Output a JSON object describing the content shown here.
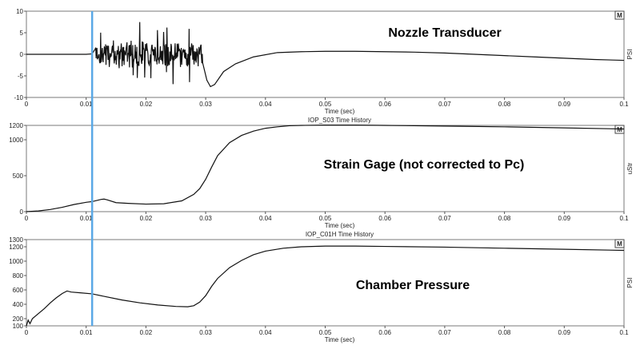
{
  "colors": {
    "trace": "#111111",
    "cursor": "#5aa9e6",
    "frame": "#7a7a7a"
  },
  "cursor": {
    "x": 0.011
  },
  "chart_data": [
    {
      "type": "line",
      "id": "nozzle",
      "title": "",
      "annotation": "Nozzle Transducer",
      "xlabel": "Time (sec)",
      "ylabel": "PSI",
      "corner": "M",
      "xlim": [
        0,
        0.1
      ],
      "ylim": [
        -10,
        10
      ],
      "x_ticks": [
        0,
        0.01,
        0.02,
        0.03,
        0.04,
        0.05,
        0.06,
        0.07,
        0.08,
        0.09,
        0.1
      ],
      "y_ticks": [
        -10,
        -5,
        0,
        5,
        10
      ],
      "noise": {
        "start": 0.0116,
        "end": 0.0295,
        "amplitude": 3.5
      },
      "series": [
        {
          "x": [
            0,
            0.01,
            0.011,
            0.0115,
            0.0118,
            0.0122,
            0.0126,
            0.013,
            0.0134,
            0.0138,
            0.0142,
            0.0148,
            0.0155,
            0.016,
            0.018,
            0.02,
            0.022,
            0.024,
            0.026,
            0.028,
            0.0295,
            0.0302,
            0.0308,
            0.0315,
            0.033,
            0.035,
            0.038,
            0.042,
            0.046,
            0.05,
            0.055,
            0.06,
            0.065,
            0.07,
            0.075,
            0.08,
            0.085,
            0.09,
            0.095,
            0.1
          ],
          "y": [
            0,
            0,
            0.1,
            1.2,
            5,
            -3,
            9,
            1,
            -4,
            3,
            -2,
            1,
            -1,
            0,
            0.3,
            0.2,
            -0.2,
            0.3,
            0.1,
            -0.3,
            -2,
            -6,
            -7.5,
            -7,
            -4,
            -2.2,
            -0.6,
            0.4,
            0.6,
            0.7,
            0.7,
            0.6,
            0.5,
            0.3,
            0,
            -0.3,
            -0.6,
            -0.9,
            -1.2,
            -1.4
          ]
        }
      ]
    },
    {
      "type": "line",
      "id": "strain",
      "title": "IOP_S03 Time History",
      "annotation": "Strain Gage (not corrected to Pc)",
      "xlabel": "Time (sec)",
      "ylabel": "uStr",
      "corner": "M",
      "xlim": [
        0,
        0.1
      ],
      "ylim": [
        0,
        1200
      ],
      "x_ticks": [
        0,
        0.01,
        0.02,
        0.03,
        0.04,
        0.05,
        0.06,
        0.07,
        0.08,
        0.09,
        0.1
      ],
      "y_ticks": [
        0,
        500,
        1000,
        1200
      ],
      "series": [
        {
          "x": [
            0,
            0.002,
            0.004,
            0.006,
            0.008,
            0.01,
            0.011,
            0.0125,
            0.013,
            0.0135,
            0.015,
            0.017,
            0.02,
            0.023,
            0.026,
            0.028,
            0.029,
            0.03,
            0.031,
            0.032,
            0.034,
            0.036,
            0.038,
            0.04,
            0.042,
            0.044,
            0.046,
            0.05,
            0.055,
            0.06,
            0.07,
            0.08,
            0.09,
            0.1
          ],
          "y": [
            0,
            10,
            30,
            60,
            100,
            130,
            140,
            170,
            175,
            165,
            125,
            115,
            105,
            110,
            150,
            240,
            320,
            450,
            620,
            780,
            960,
            1060,
            1120,
            1160,
            1180,
            1195,
            1200,
            1205,
            1205,
            1200,
            1190,
            1180,
            1165,
            1150
          ]
        }
      ]
    },
    {
      "type": "line",
      "id": "chamber",
      "title": "IOP_C01H Time History",
      "annotation": "Chamber Pressure",
      "xlabel": "Time (sec)",
      "ylabel": "PSI",
      "corner": "M",
      "xlim": [
        0,
        0.1
      ],
      "ylim": [
        100,
        1300
      ],
      "x_ticks": [
        0,
        0.01,
        0.02,
        0.03,
        0.04,
        0.05,
        0.06,
        0.07,
        0.08,
        0.09,
        0.1
      ],
      "y_ticks": [
        100,
        200,
        400,
        600,
        800,
        1000,
        1200,
        1300
      ],
      "series": [
        {
          "x": [
            0,
            0.0003,
            0.0006,
            0.001,
            0.002,
            0.003,
            0.004,
            0.005,
            0.006,
            0.0068,
            0.0075,
            0.009,
            0.011,
            0.013,
            0.016,
            0.019,
            0.022,
            0.025,
            0.027,
            0.028,
            0.029,
            0.03,
            0.031,
            0.032,
            0.034,
            0.036,
            0.038,
            0.04,
            0.043,
            0.046,
            0.05,
            0.055,
            0.06,
            0.07,
            0.08,
            0.09,
            0.1
          ],
          "y": [
            100,
            180,
            130,
            200,
            270,
            340,
            420,
            490,
            550,
            585,
            570,
            560,
            545,
            510,
            460,
            420,
            390,
            370,
            365,
            380,
            430,
            520,
            650,
            760,
            910,
            1010,
            1090,
            1140,
            1180,
            1200,
            1210,
            1210,
            1205,
            1195,
            1180,
            1165,
            1150
          ]
        }
      ]
    }
  ]
}
